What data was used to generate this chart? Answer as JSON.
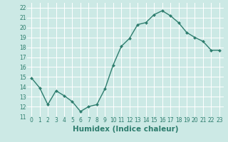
{
  "x": [
    0,
    1,
    2,
    3,
    4,
    5,
    6,
    7,
    8,
    9,
    10,
    11,
    12,
    13,
    14,
    15,
    16,
    17,
    18,
    19,
    20,
    21,
    22,
    23
  ],
  "y": [
    14.9,
    13.9,
    12.2,
    13.6,
    13.1,
    12.5,
    11.5,
    12.0,
    12.2,
    13.8,
    16.2,
    18.1,
    18.9,
    20.3,
    20.5,
    21.3,
    21.7,
    21.2,
    20.5,
    19.5,
    19.0,
    18.6,
    17.7,
    17.7
  ],
  "line_color": "#2e7d6e",
  "marker": "D",
  "marker_size": 2.0,
  "linewidth": 1.0,
  "xlabel": "Humidex (Indice chaleur)",
  "xlim": [
    -0.5,
    23.5
  ],
  "ylim": [
    11,
    22.5
  ],
  "yticks": [
    11,
    12,
    13,
    14,
    15,
    16,
    17,
    18,
    19,
    20,
    21,
    22
  ],
  "xticks": [
    0,
    1,
    2,
    3,
    4,
    5,
    6,
    7,
    8,
    9,
    10,
    11,
    12,
    13,
    14,
    15,
    16,
    17,
    18,
    19,
    20,
    21,
    22,
    23
  ],
  "xtick_labels": [
    "0",
    "1",
    "2",
    "3",
    "4",
    "5",
    "6",
    "7",
    "8",
    "9",
    "10",
    "11",
    "12",
    "13",
    "14",
    "15",
    "16",
    "17",
    "18",
    "19",
    "20",
    "21",
    "22",
    "23"
  ],
  "bg_color": "#cce9e5",
  "grid_color": "#ffffff",
  "tick_color": "#2e7d6e",
  "tick_fontsize": 5.5,
  "xlabel_fontsize": 7.5
}
